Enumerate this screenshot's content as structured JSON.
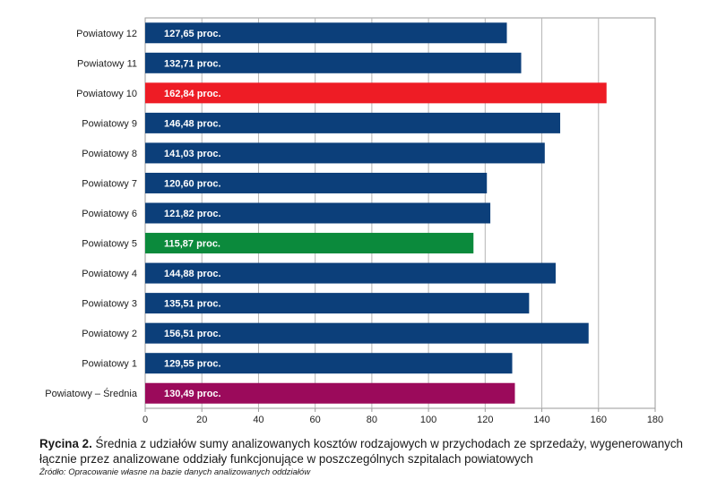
{
  "chart_data": {
    "type": "bar",
    "orientation": "horizontal",
    "categories": [
      "Powiatowy 12",
      "Powiatowy 11",
      "Powiatowy 10",
      "Powiatowy 9",
      "Powiatowy 8",
      "Powiatowy 7",
      "Powiatowy 6",
      "Powiatowy 5",
      "Powiatowy 4",
      "Powiatowy 3",
      "Powiatowy 2",
      "Powiatowy 1",
      "Powiatowy – Średnia"
    ],
    "values": [
      127.65,
      132.71,
      162.84,
      146.48,
      141.03,
      120.6,
      121.82,
      115.87,
      144.88,
      135.51,
      156.51,
      129.55,
      130.49
    ],
    "value_labels": [
      "127,65 proc.",
      "132,71 proc.",
      "162,84 proc.",
      "146,48 proc.",
      "141,03 proc.",
      "120,60 proc.",
      "121,82 proc.",
      "115,87 proc.",
      "144,88 proc.",
      "135,51 proc.",
      "156,51 proc.",
      "129,55 proc.",
      "130,49 proc."
    ],
    "colors": [
      "#0c3f7a",
      "#0c3f7a",
      "#ee1c25",
      "#0c3f7a",
      "#0c3f7a",
      "#0c3f7a",
      "#0c3f7a",
      "#0b8a3c",
      "#0c3f7a",
      "#0c3f7a",
      "#0c3f7a",
      "#0c3f7a",
      "#9b0a5b"
    ],
    "xlim": [
      0,
      180
    ],
    "xticks": [
      0,
      20,
      40,
      60,
      80,
      100,
      120,
      140,
      160,
      180
    ],
    "grid": true,
    "xlabel": "",
    "ylabel": ""
  },
  "caption": {
    "label": "Rycina 2.",
    "text": "Średnia z udziałów sumy analizowanych kosztów rodzajowych w przychodach ze sprzedaży, wygenerowanych łącznie przez analizowane oddziały funkcjonujące w poszczególnych szpitalach powiatowych",
    "source": "Źródło: Opracowanie własne na bazie danych analizowanych oddziałów"
  }
}
